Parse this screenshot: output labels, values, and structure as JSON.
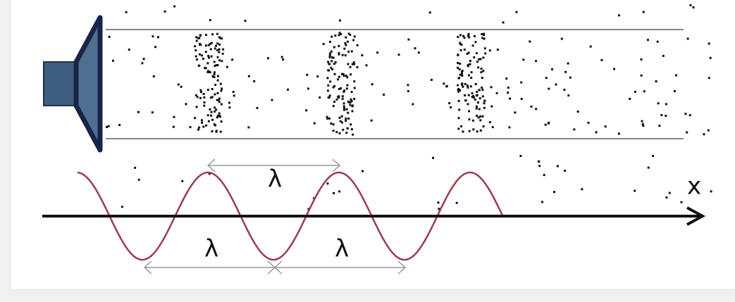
{
  "labels": {
    "wavelength_top": "λ",
    "wavelength_bottom_left": "λ",
    "wavelength_bottom_right": "λ",
    "axis": "x"
  }
}
